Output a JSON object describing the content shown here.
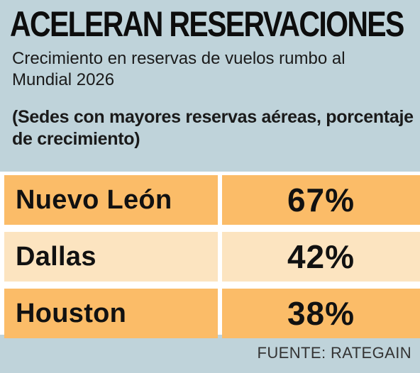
{
  "header": {
    "title": "ACELERAN RESERVACIONES",
    "subtitle": "Crecimiento en reservas de vuelos rumbo al Mundial 2026",
    "note": "(Sedes con mayores reservas aéreas, porcentaje de crecimiento)"
  },
  "colors": {
    "background": "#bfd3da",
    "row_dark": "#fbbc68",
    "row_light": "#fce4c0",
    "text": "#111111"
  },
  "chart_data": {
    "type": "table",
    "categories": [
      "Nuevo León",
      "Dallas",
      "Houston"
    ],
    "values": [
      67,
      42,
      38
    ],
    "value_labels": [
      "67%",
      "42%",
      "38%"
    ],
    "title": "ACELERAN RESERVACIONES",
    "unit": "%"
  },
  "footer": {
    "source": "FUENTE: RATEGAIN"
  }
}
